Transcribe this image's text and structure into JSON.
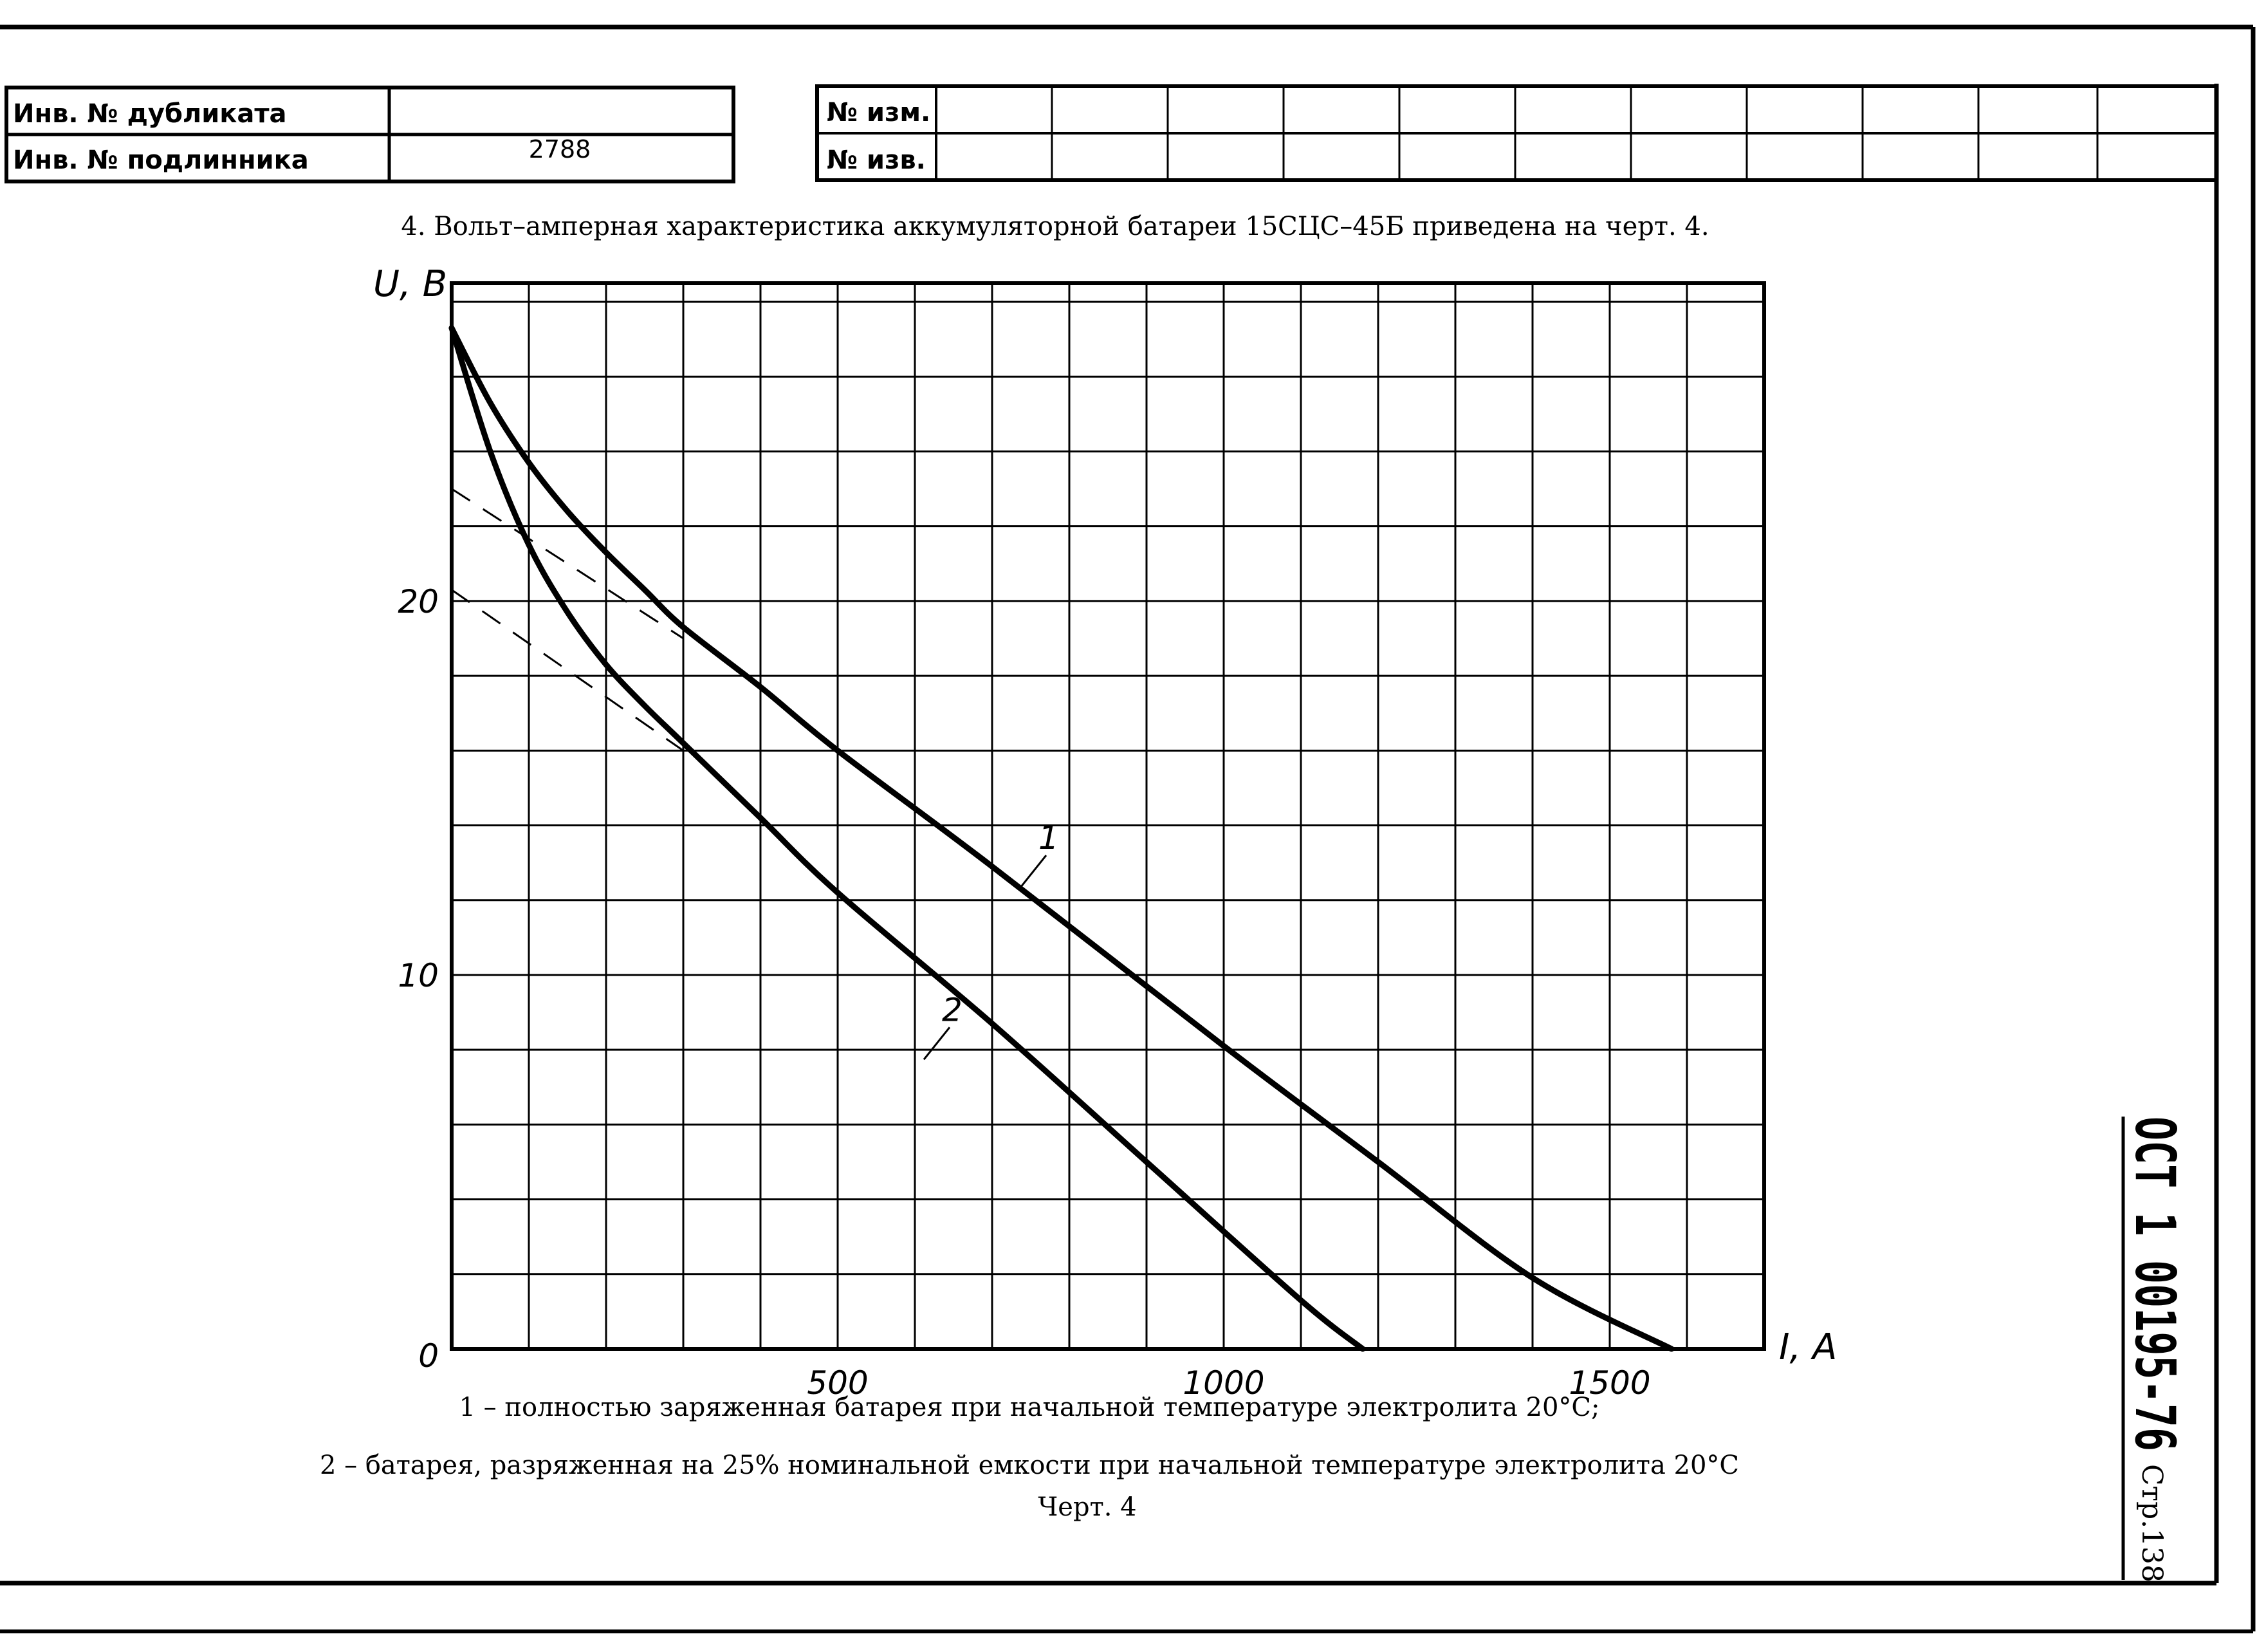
{
  "stamp": {
    "dup_label": "Инв. № дубликата",
    "dup_value": "",
    "orig_label": "Инв. № подлинника",
    "orig_value": "2788",
    "change_label": "№ изм.",
    "notice_label": "№ изв."
  },
  "heading": "4. Вольт–амперная характеристика аккумуляторной батареи 15СЦС–45Б приведена на черт. 4.",
  "side": {
    "doc_code": "ОСТ 1 00195-76",
    "page_label": "Стр.",
    "page_number": "138"
  },
  "notes": {
    "line1": "1 – полностью заряженная батарея при начальной температуре электролита  20°С;",
    "line2": "2 – батарея, разряженная на 25% номинальной емкости при начальной температуре электролита 20°С",
    "drawing_label": "Черт. 4"
  },
  "colors": {
    "ink": "#000000",
    "paper": "#ffffff"
  },
  "chart_data": {
    "type": "line",
    "title": "",
    "xlabel": "I, A",
    "ylabel": "U, B",
    "xlim": [
      0,
      1700
    ],
    "ylim": [
      0,
      28.5
    ],
    "grid": true,
    "grid_step": {
      "x": 100,
      "y": 2
    },
    "x_ticks": [
      {
        "value": 500,
        "label": "500"
      },
      {
        "value": 1000,
        "label": "1000"
      },
      {
        "value": 1500,
        "label": "1500"
      }
    ],
    "y_ticks": [
      {
        "value": 0,
        "label": "0"
      },
      {
        "value": 10,
        "label": "10"
      },
      {
        "value": 20,
        "label": "20"
      }
    ],
    "series": [
      {
        "name": "1",
        "points": [
          [
            0,
            27.3
          ],
          [
            50,
            25.3
          ],
          [
            100,
            23.7
          ],
          [
            150,
            22.4
          ],
          [
            200,
            21.3
          ],
          [
            250,
            20.3
          ],
          [
            300,
            19.3
          ],
          [
            400,
            17.7
          ],
          [
            500,
            16.0
          ],
          [
            700,
            12.9
          ],
          [
            1000,
            8.1
          ],
          [
            1200,
            5.0
          ],
          [
            1400,
            1.9
          ],
          [
            1580,
            0
          ]
        ],
        "label_at": {
          "x": 770,
          "y": 13.2
        }
      },
      {
        "name": "2",
        "points": [
          [
            0,
            27.3
          ],
          [
            50,
            24.0
          ],
          [
            100,
            21.5
          ],
          [
            150,
            19.7
          ],
          [
            200,
            18.3
          ],
          [
            250,
            17.2
          ],
          [
            300,
            16.2
          ],
          [
            400,
            14.2
          ],
          [
            500,
            12.2
          ],
          [
            700,
            8.7
          ],
          [
            900,
            5.0
          ],
          [
            1100,
            1.3
          ],
          [
            1180,
            0
          ]
        ],
        "label_at": {
          "x": 645,
          "y": 8.6
        }
      }
    ],
    "asymptotes": [
      {
        "points": [
          [
            0,
            23.0
          ],
          [
            300,
            19.0
          ]
        ]
      },
      {
        "points": [
          [
            0,
            20.3
          ],
          [
            300,
            16.0
          ]
        ]
      }
    ]
  }
}
